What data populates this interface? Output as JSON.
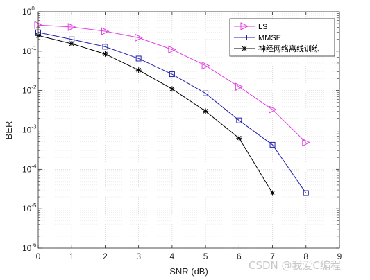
{
  "chart_data": {
    "type": "line",
    "xlabel": "SNR (dB)",
    "ylabel": "BER",
    "xlim": [
      0,
      9
    ],
    "ylim": [
      1e-06,
      1
    ],
    "yscale": "log",
    "xticks": [
      0,
      1,
      2,
      3,
      4,
      5,
      6,
      7,
      8,
      9
    ],
    "yticks": [
      {
        "value": 1e-06,
        "base": "10",
        "exp": "-6"
      },
      {
        "value": 1e-05,
        "base": "10",
        "exp": "-5"
      },
      {
        "value": 0.0001,
        "base": "10",
        "exp": "-4"
      },
      {
        "value": 0.001,
        "base": "10",
        "exp": "-3"
      },
      {
        "value": 0.01,
        "base": "10",
        "exp": "-2"
      },
      {
        "value": 0.1,
        "base": "10",
        "exp": "-1"
      },
      {
        "value": 1,
        "base": "10",
        "exp": "0"
      }
    ],
    "grid": true,
    "legend_position": "top-right",
    "series": [
      {
        "name": "LS",
        "color": "#e040e0",
        "marker": "triangle-right",
        "x": [
          0,
          1,
          2,
          3,
          4,
          5,
          6,
          7,
          8
        ],
        "y": [
          0.46,
          0.41,
          0.32,
          0.22,
          0.11,
          0.043,
          0.0125,
          0.0033,
          0.00048
        ]
      },
      {
        "name": "MMSE",
        "color": "#2020b0",
        "marker": "square",
        "x": [
          0,
          1,
          2,
          3,
          4,
          5,
          6,
          7,
          8
        ],
        "y": [
          0.3,
          0.2,
          0.13,
          0.065,
          0.026,
          0.0085,
          0.00175,
          0.00042,
          2.5e-05
        ]
      },
      {
        "name": "神经网络离线训练",
        "color": "#000000",
        "marker": "asterisk",
        "x": [
          0,
          1,
          2,
          3,
          4,
          5,
          6,
          7
        ],
        "y": [
          0.25,
          0.155,
          0.085,
          0.033,
          0.011,
          0.003,
          0.00062,
          2.5e-05
        ]
      }
    ]
  },
  "watermark": "CSDN @我爱C编程"
}
